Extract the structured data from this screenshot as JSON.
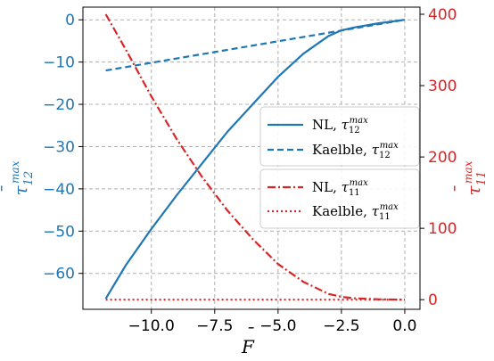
{
  "chart_data": {
    "type": "line",
    "xlabel": {
      "base": "F",
      "accent": "¯"
    },
    "ylabel_left": {
      "base": "τ",
      "accent": "¯",
      "sub": "12",
      "sup": "max"
    },
    "ylabel_right": {
      "base": "τ",
      "accent": "¯",
      "sub": "11",
      "sup": "max"
    },
    "xlim": [
      -12.7,
      0.6
    ],
    "ylim_left": [
      -68.5,
      3.0
    ],
    "ylim_right": [
      -13.5,
      410.0
    ],
    "xticks": [
      -10.0,
      -7.5,
      -5.0,
      -2.5,
      0.0
    ],
    "xtick_labels": [
      "−10.0",
      "−7.5",
      "−5.0",
      "−2.5",
      "0.0"
    ],
    "yticks_left": [
      0,
      -10,
      -20,
      -30,
      -40,
      -50,
      -60
    ],
    "ytick_labels_left": [
      "0",
      "−10",
      "−20",
      "−30",
      "−40",
      "−50",
      "−60"
    ],
    "yticks_right": [
      0,
      100,
      200,
      300,
      400
    ],
    "ytick_labels_right": [
      "0",
      "100",
      "200",
      "300",
      "400"
    ],
    "grid": true,
    "legend_placement": "right",
    "series": [
      {
        "name": "NL, ",
        "tau_sub": "12",
        "tau_sup": "max",
        "axis": "left",
        "style": "solid",
        "color": "#1f77b4",
        "x": [
          -11.8,
          -11.0,
          -10.0,
          -9.0,
          -8.0,
          -7.0,
          -6.0,
          -5.0,
          -4.0,
          -3.0,
          -2.5,
          -2.0,
          -1.0,
          0.0
        ],
        "y": [
          -66.0,
          -58.0,
          -49.5,
          -41.5,
          -34.0,
          -26.5,
          -20.0,
          -13.5,
          -8.0,
          -3.8,
          -2.5,
          -1.8,
          -0.8,
          0.0
        ]
      },
      {
        "name": "Kaelble, ",
        "tau_sub": "12",
        "tau_sup": "max",
        "axis": "left",
        "style": "dashed",
        "color": "#1f77b4",
        "x": [
          -11.8,
          0.0
        ],
        "y": [
          -12.0,
          0.0
        ]
      },
      {
        "name": "NL, ",
        "tau_sub": "11",
        "tau_sup": "max",
        "axis": "right",
        "style": "dashdot",
        "color": "#d62728",
        "x": [
          -11.8,
          -11.0,
          -10.0,
          -9.0,
          -8.0,
          -7.0,
          -6.0,
          -5.0,
          -4.0,
          -3.0,
          -2.5,
          -2.0,
          -1.0,
          0.0
        ],
        "y": [
          400,
          350,
          285,
          225,
          172,
          125,
          85,
          50,
          25,
          8,
          4,
          2,
          0.5,
          0
        ]
      },
      {
        "name": "Kaelble, ",
        "tau_sub": "11",
        "tau_sup": "max",
        "axis": "right",
        "style": "dotted",
        "color": "#d62728",
        "x": [
          -11.8,
          0.0
        ],
        "y": [
          0,
          0
        ]
      }
    ]
  }
}
